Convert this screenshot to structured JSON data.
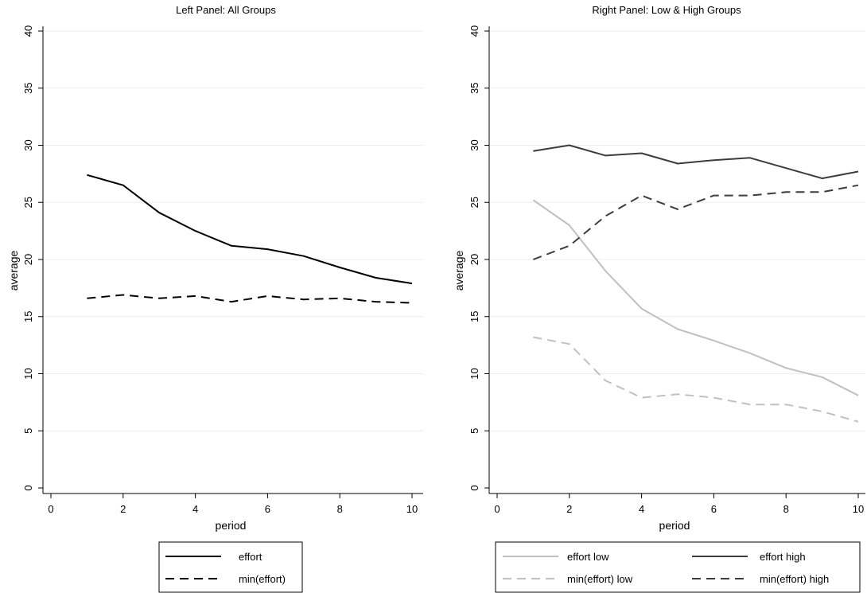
{
  "chart_data": [
    {
      "type": "line",
      "title": "Left Panel: All Groups",
      "xlabel": "period",
      "ylabel": "average",
      "xlim": [
        0,
        10
      ],
      "ylim": [
        0,
        40
      ],
      "xticks": [
        0,
        2,
        4,
        6,
        8,
        10
      ],
      "yticks": [
        0,
        5,
        10,
        15,
        20,
        25,
        30,
        35,
        40
      ],
      "grid": "horizontal",
      "legend": "bottom",
      "x": [
        1,
        2,
        3,
        4,
        5,
        6,
        7,
        8,
        9,
        10
      ],
      "series": [
        {
          "name": "effort",
          "color": "#000000",
          "dash": "solid",
          "values": [
            27.4,
            26.5,
            24.1,
            22.5,
            21.2,
            20.9,
            20.3,
            19.3,
            18.4,
            17.9
          ]
        },
        {
          "name": "min(effort)",
          "color": "#000000",
          "dash": "dashed",
          "values": [
            16.6,
            16.9,
            16.6,
            16.8,
            16.3,
            16.8,
            16.5,
            16.6,
            16.3,
            16.2
          ]
        }
      ]
    },
    {
      "type": "line",
      "title": "Right Panel: Low & High Groups",
      "xlabel": "period",
      "ylabel": "average",
      "xlim": [
        0,
        10
      ],
      "ylim": [
        0,
        40
      ],
      "xticks": [
        0,
        2,
        4,
        6,
        8,
        10
      ],
      "yticks": [
        0,
        5,
        10,
        15,
        20,
        25,
        30,
        35,
        40
      ],
      "grid": "horizontal",
      "legend": "bottom",
      "x": [
        1,
        2,
        3,
        4,
        5,
        6,
        7,
        8,
        9,
        10
      ],
      "series": [
        {
          "name": "effort low",
          "color": "#c0c0c0",
          "dash": "solid",
          "values": [
            25.2,
            23.0,
            19.0,
            15.7,
            13.9,
            12.9,
            11.8,
            10.5,
            9.7,
            8.1
          ]
        },
        {
          "name": "effort high",
          "color": "#3c3c3c",
          "dash": "solid",
          "values": [
            29.5,
            30.0,
            29.1,
            29.3,
            28.4,
            28.7,
            28.9,
            28.0,
            27.1,
            27.7
          ]
        },
        {
          "name": "min(effort) low",
          "color": "#c0c0c0",
          "dash": "dashed",
          "values": [
            13.2,
            12.6,
            9.4,
            7.9,
            8.2,
            7.9,
            7.3,
            7.3,
            6.7,
            5.8
          ]
        },
        {
          "name": "min(effort) high",
          "color": "#3c3c3c",
          "dash": "dashed",
          "values": [
            20.0,
            21.2,
            23.8,
            25.6,
            24.4,
            25.6,
            25.6,
            25.9,
            25.9,
            26.5
          ]
        }
      ]
    }
  ]
}
